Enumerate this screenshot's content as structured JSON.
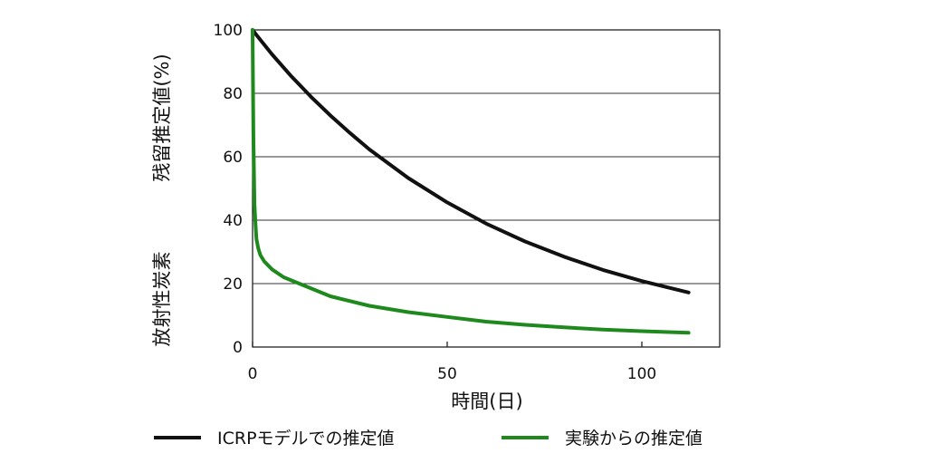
{
  "chart_data": {
    "type": "line",
    "title": "",
    "xlabel": "時間(日)",
    "ylabel_left": "放射性炭素",
    "ylabel_right": "残留推定値(%)",
    "xlim": [
      0,
      120
    ],
    "ylim": [
      0,
      100
    ],
    "x_ticks": [
      0,
      50,
      100
    ],
    "y_ticks": [
      0,
      20,
      40,
      60,
      80,
      100
    ],
    "grid": "horizontal",
    "legend_position": "bottom",
    "series": [
      {
        "name": "ICRPモデルでの推定値",
        "color": "#111111",
        "x": [
          0,
          1,
          5,
          10,
          15,
          20,
          25,
          30,
          40,
          50,
          60,
          70,
          80,
          90,
          100,
          112
        ],
        "y": [
          100,
          98.4,
          92.3,
          85.3,
          78.9,
          73.0,
          67.5,
          62.3,
          53.3,
          45.6,
          38.9,
          33.3,
          28.5,
          24.3,
          20.8,
          17.2
        ]
      },
      {
        "name": "実験からの推定値",
        "color": "#1e8a1e",
        "x": [
          0,
          0.2,
          0.5,
          0.8,
          1,
          1.5,
          2,
          3,
          5,
          8,
          12,
          20,
          30,
          40,
          50,
          60,
          70,
          80,
          90,
          100,
          112
        ],
        "y": [
          100,
          67,
          45,
          38,
          34,
          31,
          29,
          27,
          24.5,
          22,
          20,
          16,
          13,
          11,
          9.5,
          8,
          7,
          6.2,
          5.5,
          5,
          4.5
        ]
      }
    ]
  }
}
